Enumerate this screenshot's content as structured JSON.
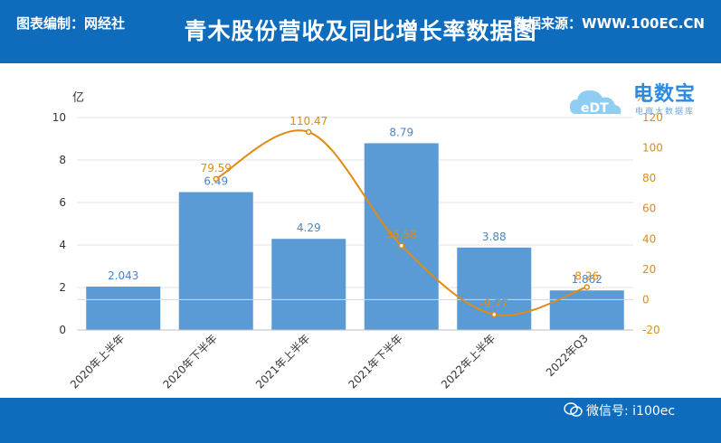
{
  "header": {
    "title": "青木股份营收及同比增长率数据图"
  },
  "footer": {
    "left": "图表编制：网经社",
    "right": "数据来源：WWW.100EC.CN",
    "wechat": "微信号: i100ec"
  },
  "logo": {
    "name": "电数宝",
    "sub": "电商大数据库"
  },
  "colors": {
    "bar": "#5b9bd5",
    "line": "#e08b14",
    "header": "#0f6cbd"
  },
  "chart_data": {
    "type": "bar+line",
    "categories": [
      "2020年上半年",
      "2020年下半年",
      "2021年上半年",
      "2021年下半年",
      "2022年上半年",
      "2022年Q3"
    ],
    "series": [
      {
        "values": [
          2.043,
          6.49,
          4.29,
          8.79,
          3.88,
          1.862
        ],
        "axis": "left",
        "kind": "bar"
      },
      {
        "values": [
          79.59,
          79.59,
          110.47,
          35.58,
          -9.77,
          8.26
        ],
        "axis": "right",
        "kind": "line"
      }
    ],
    "bar_labels": [
      "2.043",
      "6.49",
      "4.29",
      "8.79",
      "3.88",
      "1.862"
    ],
    "line_labels": [
      "",
      "79.59",
      "110.47",
      "35.58",
      "-9.77",
      "8.26"
    ],
    "ylabel": "亿",
    "y2label": "%",
    "ylim": [
      0,
      10
    ],
    "y2lim": [
      -20,
      120
    ],
    "yticks": [
      "0",
      "2",
      "4",
      "6",
      "8",
      "10"
    ],
    "y2ticks": [
      "-20",
      "0",
      "20",
      "40",
      "60",
      "80",
      "100",
      "120"
    ],
    "grid": true
  }
}
